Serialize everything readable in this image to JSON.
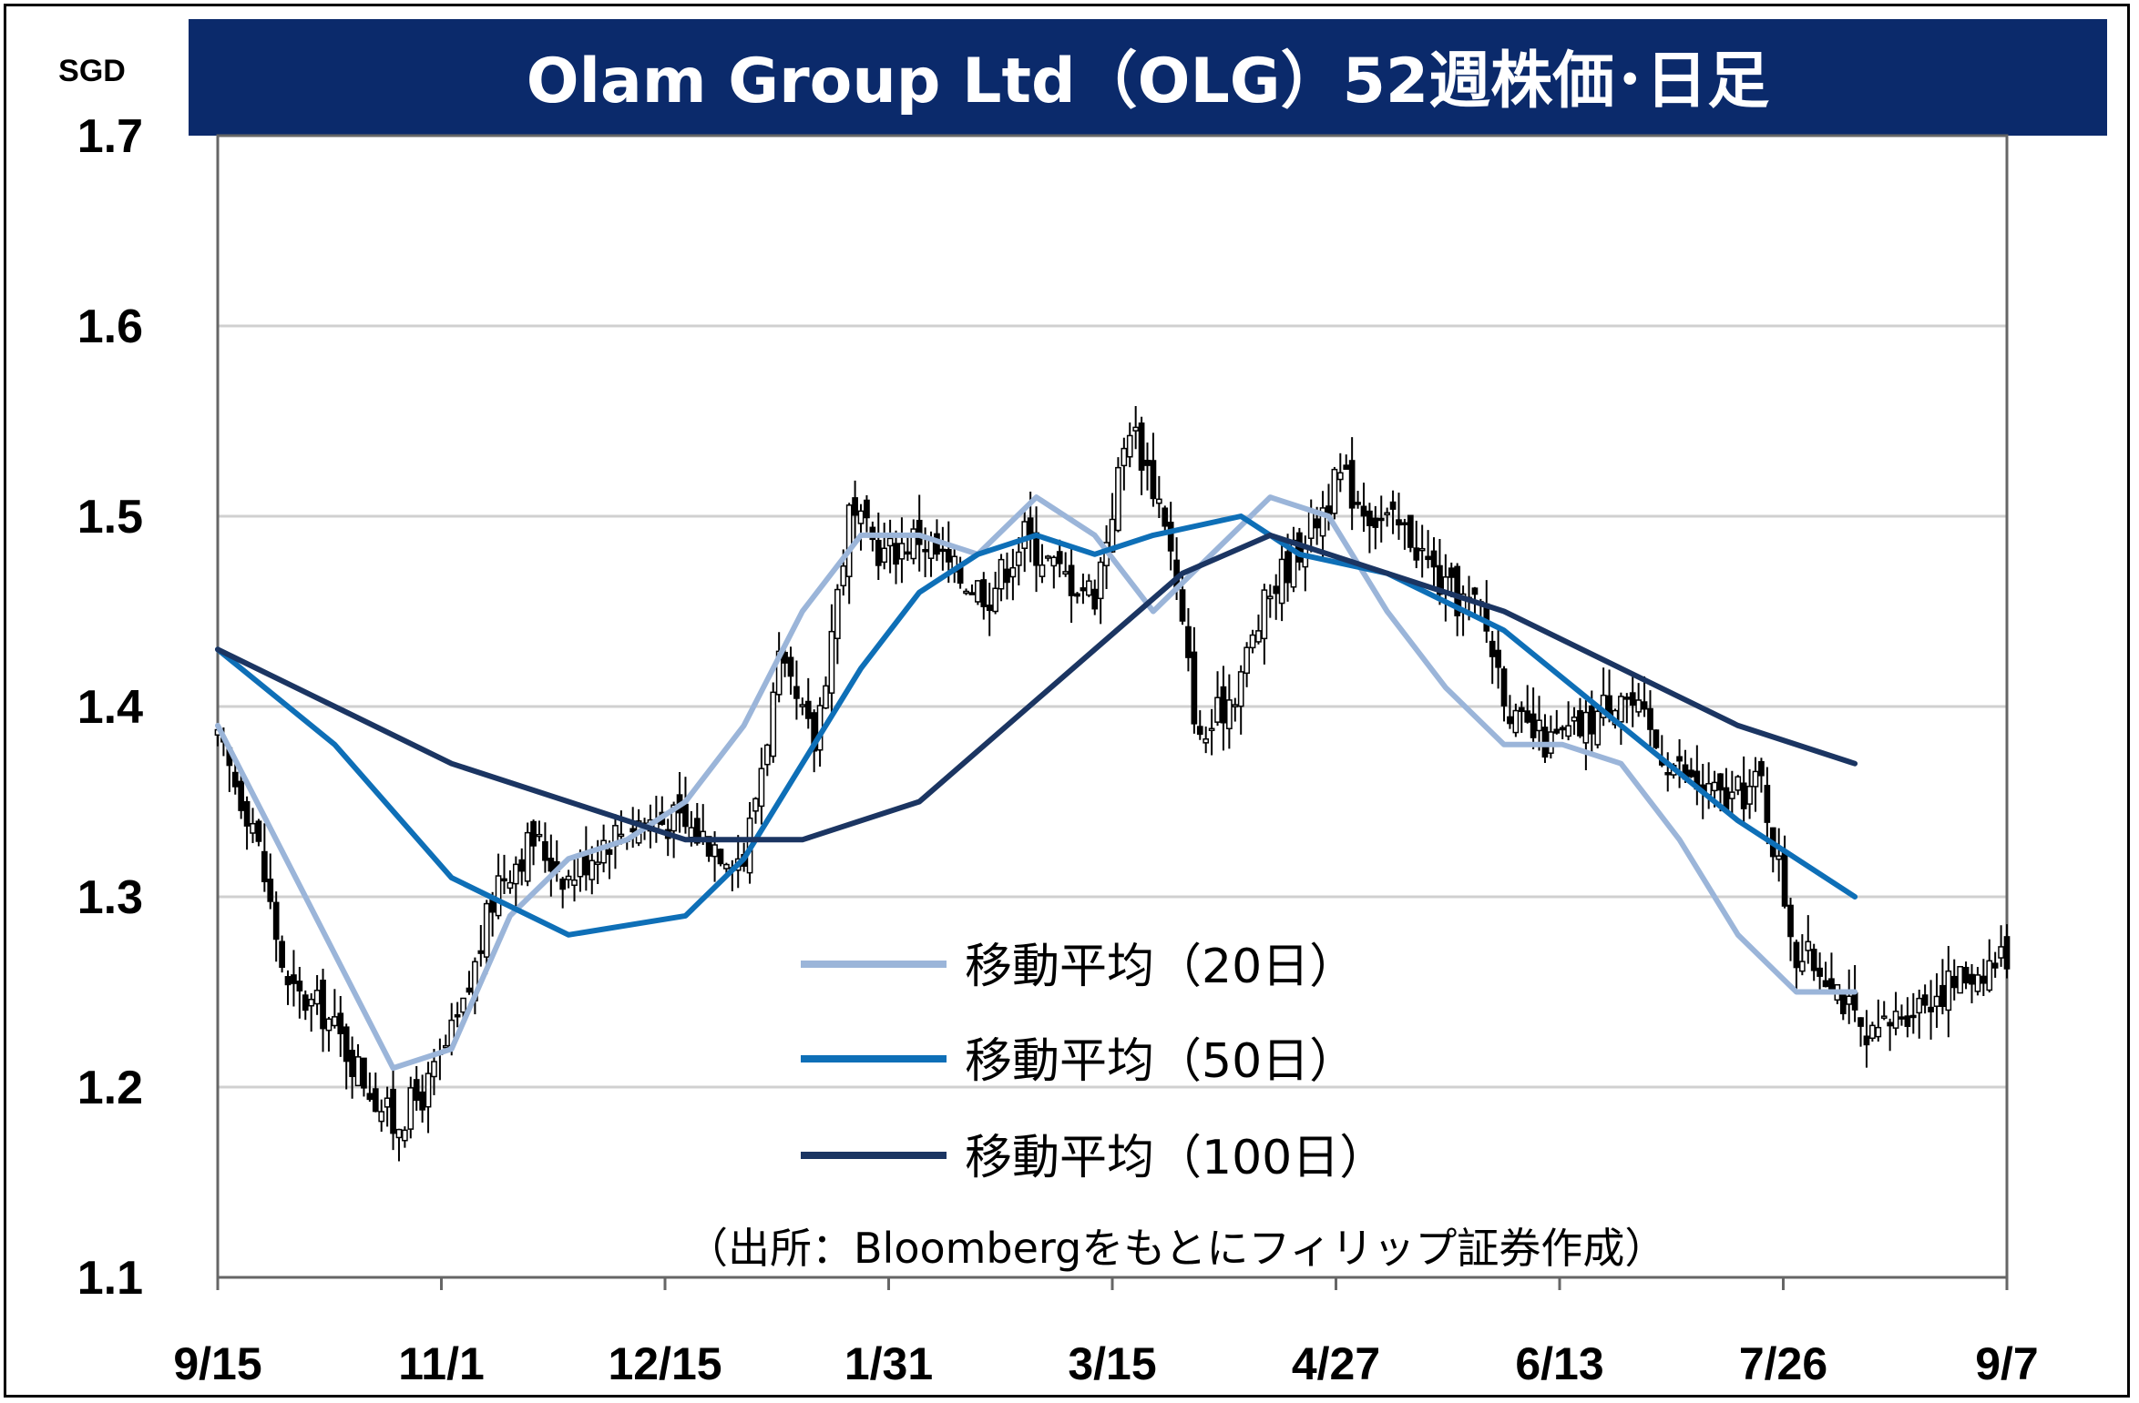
{
  "title": "Olam Group Ltd（OLG）52週株価･日足",
  "source_note": "（出所：Bloombergをもとにフィリップ証券作成）",
  "chart_data": {
    "type": "candlestick",
    "title": "Olam Group Ltd（OLG）52週株価･日足",
    "ylabel": "SGD",
    "ylim": [
      1.1,
      1.7
    ],
    "yticks": [
      "1.1",
      "1.2",
      "1.3",
      "1.4",
      "1.5",
      "1.6",
      "1.7"
    ],
    "xticks": [
      "9/15",
      "11/1",
      "12/15",
      "1/31",
      "3/15",
      "4/27",
      "6/13",
      "7/26",
      "9/7"
    ],
    "grid": "horizontal",
    "legend_position": "center",
    "colors": {
      "title_bg": "#0b2a6b",
      "ma20": "#9bb5d9",
      "ma50": "#0e6fb7",
      "ma100": "#1b3562",
      "candle": "#000000",
      "grid": "#d0d0d0"
    },
    "close_anchors": [
      [
        0,
        1.38
      ],
      [
        6,
        1.34
      ],
      [
        12,
        1.25
      ],
      [
        18,
        1.24
      ],
      [
        24,
        1.21
      ],
      [
        30,
        1.18
      ],
      [
        36,
        1.2
      ],
      [
        42,
        1.24
      ],
      [
        48,
        1.31
      ],
      [
        54,
        1.33
      ],
      [
        60,
        1.31
      ],
      [
        66,
        1.33
      ],
      [
        72,
        1.34
      ],
      [
        78,
        1.34
      ],
      [
        84,
        1.33
      ],
      [
        90,
        1.32
      ],
      [
        96,
        1.42
      ],
      [
        102,
        1.38
      ],
      [
        108,
        1.5
      ],
      [
        114,
        1.48
      ],
      [
        120,
        1.49
      ],
      [
        126,
        1.47
      ],
      [
        132,
        1.46
      ],
      [
        138,
        1.49
      ],
      [
        144,
        1.47
      ],
      [
        150,
        1.46
      ],
      [
        156,
        1.55
      ],
      [
        162,
        1.5
      ],
      [
        168,
        1.38
      ],
      [
        174,
        1.41
      ],
      [
        180,
        1.46
      ],
      [
        186,
        1.49
      ],
      [
        192,
        1.52
      ],
      [
        198,
        1.5
      ],
      [
        204,
        1.49
      ],
      [
        210,
        1.46
      ],
      [
        216,
        1.45
      ],
      [
        222,
        1.39
      ],
      [
        228,
        1.38
      ],
      [
        234,
        1.39
      ],
      [
        240,
        1.41
      ],
      [
        246,
        1.38
      ],
      [
        252,
        1.36
      ],
      [
        258,
        1.35
      ],
      [
        264,
        1.36
      ],
      [
        270,
        1.27
      ],
      [
        276,
        1.26
      ],
      [
        282,
        1.22
      ],
      [
        288,
        1.24
      ],
      [
        294,
        1.25
      ],
      [
        300,
        1.26
      ],
      [
        306,
        1.27
      ]
    ],
    "series": [
      {
        "name": "移動平均（20日）",
        "values": [
          [
            0,
            1.39
          ],
          [
            15,
            1.3
          ],
          [
            30,
            1.21
          ],
          [
            40,
            1.22
          ],
          [
            50,
            1.29
          ],
          [
            60,
            1.32
          ],
          [
            70,
            1.33
          ],
          [
            80,
            1.35
          ],
          [
            90,
            1.39
          ],
          [
            100,
            1.45
          ],
          [
            110,
            1.49
          ],
          [
            120,
            1.49
          ],
          [
            130,
            1.48
          ],
          [
            140,
            1.51
          ],
          [
            150,
            1.49
          ],
          [
            160,
            1.45
          ],
          [
            170,
            1.48
          ],
          [
            180,
            1.51
          ],
          [
            190,
            1.5
          ],
          [
            200,
            1.45
          ],
          [
            210,
            1.41
          ],
          [
            220,
            1.38
          ],
          [
            230,
            1.38
          ],
          [
            240,
            1.37
          ],
          [
            250,
            1.33
          ],
          [
            260,
            1.28
          ],
          [
            270,
            1.25
          ],
          [
            280,
            1.25
          ]
        ]
      },
      {
        "name": "移動平均（50日）",
        "values": [
          [
            0,
            1.43
          ],
          [
            20,
            1.38
          ],
          [
            40,
            1.31
          ],
          [
            60,
            1.28
          ],
          [
            80,
            1.29
          ],
          [
            90,
            1.32
          ],
          [
            100,
            1.37
          ],
          [
            110,
            1.42
          ],
          [
            120,
            1.46
          ],
          [
            130,
            1.48
          ],
          [
            140,
            1.49
          ],
          [
            150,
            1.48
          ],
          [
            160,
            1.49
          ],
          [
            175,
            1.5
          ],
          [
            185,
            1.48
          ],
          [
            200,
            1.47
          ],
          [
            220,
            1.44
          ],
          [
            240,
            1.39
          ],
          [
            260,
            1.34
          ],
          [
            280,
            1.3
          ]
        ]
      },
      {
        "name": "移動平均（100日）",
        "values": [
          [
            0,
            1.43
          ],
          [
            20,
            1.4
          ],
          [
            40,
            1.37
          ],
          [
            60,
            1.35
          ],
          [
            80,
            1.33
          ],
          [
            100,
            1.33
          ],
          [
            120,
            1.35
          ],
          [
            135,
            1.39
          ],
          [
            150,
            1.43
          ],
          [
            165,
            1.47
          ],
          [
            180,
            1.49
          ],
          [
            200,
            1.47
          ],
          [
            220,
            1.45
          ],
          [
            240,
            1.42
          ],
          [
            260,
            1.39
          ],
          [
            280,
            1.37
          ]
        ]
      }
    ]
  }
}
